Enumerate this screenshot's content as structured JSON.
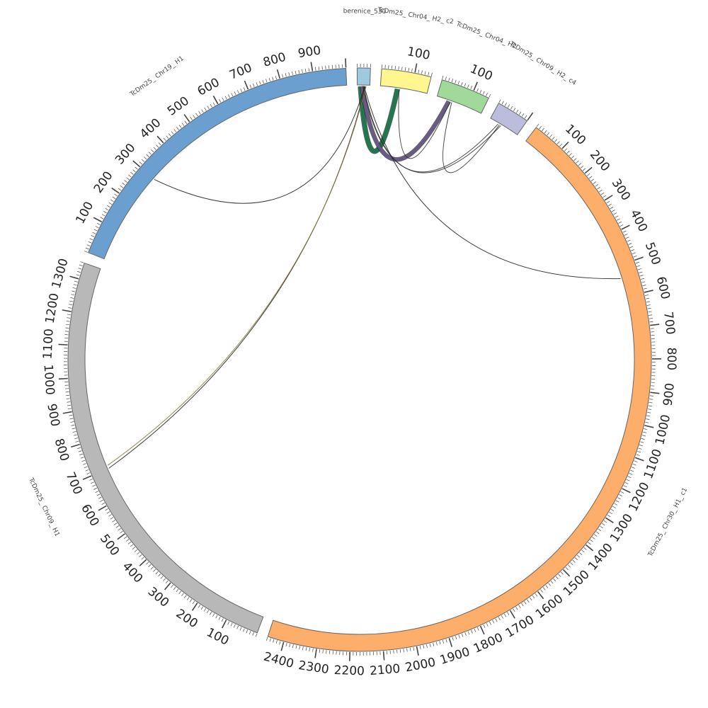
{
  "chromosomes": [
    {
      "id": "berenice_530",
      "label": "berenice_530",
      "length": 40,
      "color": "#9ecae1",
      "tick_labels": []
    },
    {
      "id": "chr04_h2_c2",
      "label": "TcDm25_ Chr04_ H2_ c2",
      "length": 150,
      "color": "#fff68f",
      "tick_labels": [
        100
      ]
    },
    {
      "id": "chr04_h2",
      "label": "TcDm25_ Chr04_ H2",
      "length": 150,
      "color": "#a1d99b",
      "tick_labels": [
        100
      ]
    },
    {
      "id": "chr09_h2_c4",
      "label": "TcDm25_ Chr09_ H2_ c4",
      "length": 100,
      "color": "#bcbddc",
      "tick_labels": []
    },
    {
      "id": "chr30_h1_c1",
      "label": "TcDm25_ Chr30_ H1_ c1",
      "length": 2450,
      "color": "#fdae6b",
      "tick_labels": [
        100,
        200,
        300,
        400,
        500,
        600,
        700,
        800,
        900,
        1000,
        1100,
        1200,
        1300,
        1400,
        1500,
        1600,
        1700,
        1800,
        1900,
        2000,
        2100,
        2200,
        2300,
        2400
      ]
    },
    {
      "id": "chr09_h1",
      "label": "TcDm25_ Chr09_ H1",
      "length": 1350,
      "color": "#b8b8b8",
      "tick_labels": [
        100,
        200,
        300,
        400,
        500,
        600,
        700,
        800,
        900,
        1000,
        1100,
        1200,
        1300
      ]
    },
    {
      "id": "chr19_h1",
      "label": "TcDm25_ Chr19_ H1",
      "length": 1000,
      "color": "#6a9fd0",
      "tick_labels": [
        100,
        200,
        300,
        400,
        500,
        600,
        700,
        800,
        900
      ]
    }
  ],
  "links": [
    {
      "from": "berenice_530",
      "from_pos": 10,
      "to": "chr04_h2_c2",
      "to_pos": 55,
      "color": "#1a7a4c",
      "width": 6
    },
    {
      "from": "berenice_530",
      "from_pos": 15,
      "to": "chr04_h2",
      "to_pos": 40,
      "color": "#6a5a8a",
      "width": 5
    },
    {
      "from": "berenice_530",
      "from_pos": 18,
      "to": "chr09_h2_c4",
      "to_pos": 30,
      "color": "#333333",
      "width": 1
    },
    {
      "from": "berenice_530",
      "from_pos": 20,
      "to": "chr09_h2_c4",
      "to_pos": 40,
      "color": "#333333",
      "width": 1
    },
    {
      "from": "berenice_530",
      "from_pos": 22,
      "to": "chr30_h1_c1",
      "to_pos": 540,
      "color": "#222222",
      "width": 1
    },
    {
      "from": "berenice_530",
      "from_pos": 24,
      "to": "chr19_h1",
      "to_pos": 300,
      "color": "#222222",
      "width": 1
    },
    {
      "from": "berenice_530",
      "from_pos": 26,
      "to": "chr09_h1",
      "to_pos": 700,
      "color": "#222222",
      "width": 1
    },
    {
      "from": "berenice_530",
      "from_pos": 28,
      "to": "chr09_h1",
      "to_pos": 710,
      "color": "#8a7a3a",
      "width": 1
    },
    {
      "from": "chr04_h2_c2",
      "from_pos": 60,
      "to": "chr04_h2",
      "to_pos": 45,
      "color": "#333333",
      "width": 1
    },
    {
      "from": "chr04_h2",
      "from_pos": 50,
      "to": "chr09_h2_c4",
      "to_pos": 35,
      "color": "#333333",
      "width": 1
    }
  ]
}
